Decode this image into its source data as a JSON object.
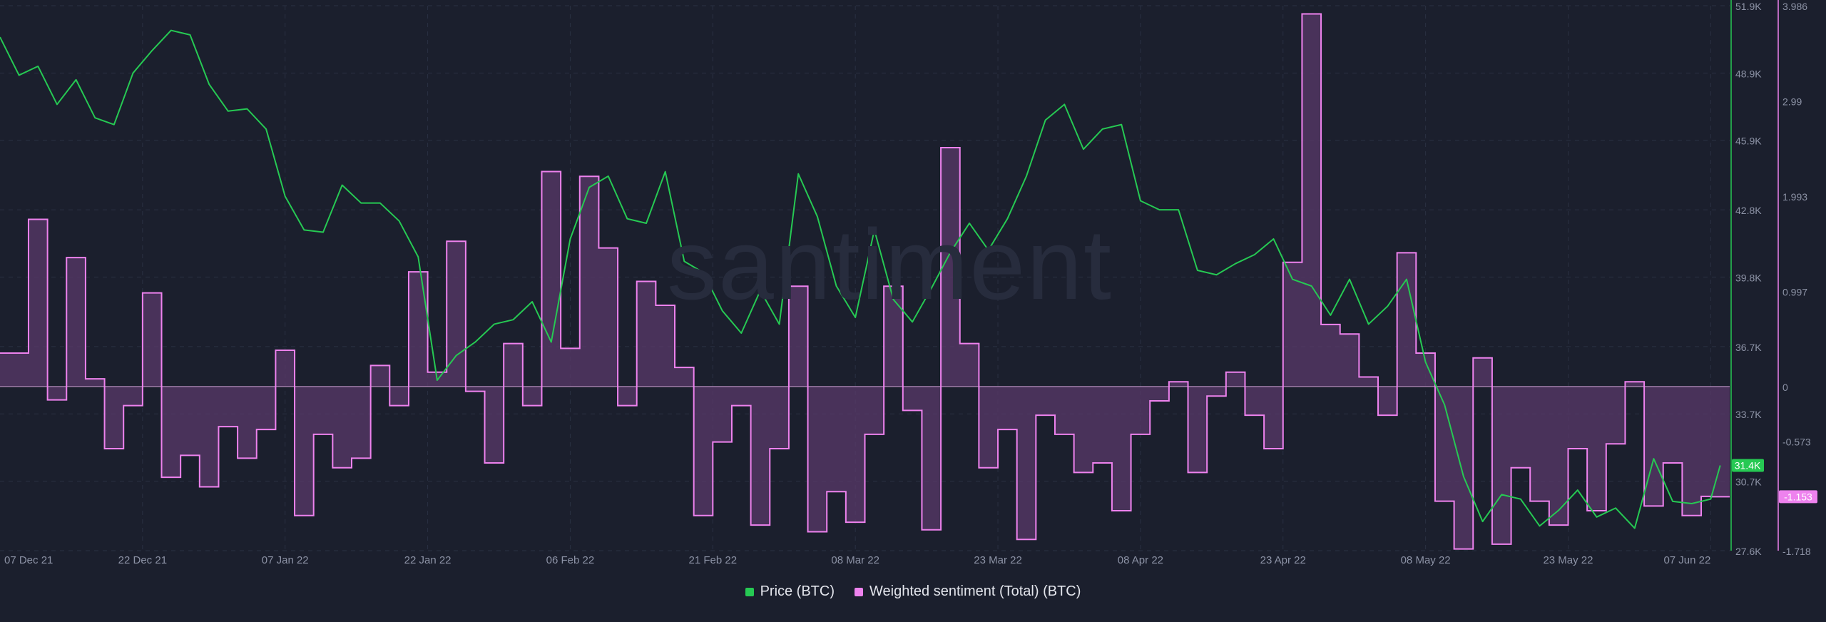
{
  "watermark": "santiment",
  "colors": {
    "background": "#1b1f2d",
    "grid": "#2a3042",
    "price": "#26c953",
    "sentiment": "#ee82ee",
    "sentiment_fill": "#5a3a6a",
    "axis_text": "#8d93a6"
  },
  "chart_data": {
    "type": "line",
    "title": "",
    "x_tick_labels": [
      "07 Dec 21",
      "22 Dec 21",
      "07 Jan 22",
      "22 Jan 22",
      "06 Feb 22",
      "21 Feb 22",
      "08 Mar 22",
      "23 Mar 22",
      "08 Apr 22",
      "23 Apr 22",
      "08 May 22",
      "23 May 22",
      "07 Jun 22"
    ],
    "xlim": [
      "2021-12-07",
      "2022-06-07"
    ],
    "price_axis": {
      "ticks": [
        "51.9K",
        "48.9K",
        "45.9K",
        "42.8K",
        "39.8K",
        "36.7K",
        "33.7K",
        "30.7K",
        "27.6K"
      ],
      "range": [
        27600,
        51900
      ],
      "current_value_label": "31.4K"
    },
    "sentiment_axis": {
      "ticks": [
        "3.986",
        "2.99",
        "1.993",
        "0.997",
        "0",
        "-0.573",
        "-1.718"
      ],
      "range": [
        -1.718,
        3.986
      ],
      "current_value_label": "-1.153"
    },
    "legend_position": "bottom-center",
    "series": [
      {
        "name": "Price (BTC)",
        "axis": "right-outer",
        "style": "line",
        "points": [
          [
            "2021-12-07",
            50500
          ],
          [
            "2021-12-09",
            48800
          ],
          [
            "2021-12-11",
            49200
          ],
          [
            "2021-12-13",
            47500
          ],
          [
            "2021-12-15",
            48600
          ],
          [
            "2021-12-17",
            46900
          ],
          [
            "2021-12-19",
            46600
          ],
          [
            "2021-12-21",
            48900
          ],
          [
            "2021-12-23",
            49900
          ],
          [
            "2021-12-25",
            50800
          ],
          [
            "2021-12-27",
            50600
          ],
          [
            "2021-12-29",
            48400
          ],
          [
            "2021-12-31",
            47200
          ],
          [
            "2022-01-02",
            47300
          ],
          [
            "2022-01-04",
            46400
          ],
          [
            "2022-01-06",
            43400
          ],
          [
            "2022-01-08",
            41900
          ],
          [
            "2022-01-10",
            41800
          ],
          [
            "2022-01-12",
            43900
          ],
          [
            "2022-01-14",
            43100
          ],
          [
            "2022-01-16",
            43100
          ],
          [
            "2022-01-18",
            42300
          ],
          [
            "2022-01-20",
            40700
          ],
          [
            "2022-01-22",
            35200
          ],
          [
            "2022-01-24",
            36300
          ],
          [
            "2022-01-26",
            36900
          ],
          [
            "2022-01-28",
            37700
          ],
          [
            "2022-01-30",
            37900
          ],
          [
            "2022-02-01",
            38700
          ],
          [
            "2022-02-03",
            36900
          ],
          [
            "2022-02-05",
            41500
          ],
          [
            "2022-02-07",
            43800
          ],
          [
            "2022-02-09",
            44300
          ],
          [
            "2022-02-11",
            42400
          ],
          [
            "2022-02-13",
            42200
          ],
          [
            "2022-02-15",
            44500
          ],
          [
            "2022-02-17",
            40500
          ],
          [
            "2022-02-19",
            40000
          ],
          [
            "2022-02-21",
            38300
          ],
          [
            "2022-02-23",
            37300
          ],
          [
            "2022-02-25",
            39200
          ],
          [
            "2022-02-27",
            37700
          ],
          [
            "2022-03-01",
            44400
          ],
          [
            "2022-03-03",
            42500
          ],
          [
            "2022-03-05",
            39400
          ],
          [
            "2022-03-07",
            38000
          ],
          [
            "2022-03-09",
            41900
          ],
          [
            "2022-03-11",
            38800
          ],
          [
            "2022-03-13",
            37800
          ],
          [
            "2022-03-15",
            39300
          ],
          [
            "2022-03-17",
            40900
          ],
          [
            "2022-03-19",
            42200
          ],
          [
            "2022-03-21",
            41000
          ],
          [
            "2022-03-23",
            42400
          ],
          [
            "2022-03-25",
            44300
          ],
          [
            "2022-03-27",
            46800
          ],
          [
            "2022-03-29",
            47500
          ],
          [
            "2022-03-31",
            45500
          ],
          [
            "2022-04-02",
            46400
          ],
          [
            "2022-04-04",
            46600
          ],
          [
            "2022-04-06",
            43200
          ],
          [
            "2022-04-08",
            42800
          ],
          [
            "2022-04-10",
            42800
          ],
          [
            "2022-04-12",
            40100
          ],
          [
            "2022-04-14",
            39900
          ],
          [
            "2022-04-16",
            40400
          ],
          [
            "2022-04-18",
            40800
          ],
          [
            "2022-04-20",
            41500
          ],
          [
            "2022-04-22",
            39700
          ],
          [
            "2022-04-24",
            39400
          ],
          [
            "2022-04-26",
            38100
          ],
          [
            "2022-04-28",
            39700
          ],
          [
            "2022-04-30",
            37700
          ],
          [
            "2022-05-02",
            38500
          ],
          [
            "2022-05-04",
            39700
          ],
          [
            "2022-05-06",
            36000
          ],
          [
            "2022-05-08",
            34100
          ],
          [
            "2022-05-10",
            30900
          ],
          [
            "2022-05-12",
            28900
          ],
          [
            "2022-05-14",
            30100
          ],
          [
            "2022-05-16",
            29900
          ],
          [
            "2022-05-18",
            28700
          ],
          [
            "2022-05-20",
            29400
          ],
          [
            "2022-05-22",
            30300
          ],
          [
            "2022-05-24",
            29100
          ],
          [
            "2022-05-26",
            29500
          ],
          [
            "2022-05-28",
            28600
          ],
          [
            "2022-05-30",
            31700
          ],
          [
            "2022-06-01",
            29800
          ],
          [
            "2022-06-03",
            29700
          ],
          [
            "2022-06-05",
            29900
          ],
          [
            "2022-06-06",
            31400
          ]
        ]
      },
      {
        "name": "Weighted sentiment (Total) (BTC)",
        "axis": "right-inner",
        "style": "step-area",
        "points": [
          [
            "2021-12-07",
            0.35
          ],
          [
            "2021-12-10",
            1.75
          ],
          [
            "2021-12-12",
            -0.14
          ],
          [
            "2021-12-14",
            1.35
          ],
          [
            "2021-12-16",
            0.08
          ],
          [
            "2021-12-18",
            -0.65
          ],
          [
            "2021-12-20",
            -0.2
          ],
          [
            "2021-12-22",
            0.98
          ],
          [
            "2021-12-24",
            -0.95
          ],
          [
            "2021-12-26",
            -0.72
          ],
          [
            "2021-12-28",
            -1.05
          ],
          [
            "2021-12-30",
            -0.42
          ],
          [
            "2022-01-01",
            -0.75
          ],
          [
            "2022-01-03",
            -0.45
          ],
          [
            "2022-01-05",
            0.38
          ],
          [
            "2022-01-07",
            -1.35
          ],
          [
            "2022-01-09",
            -0.5
          ],
          [
            "2022-01-11",
            -0.85
          ],
          [
            "2022-01-13",
            -0.75
          ],
          [
            "2022-01-15",
            0.22
          ],
          [
            "2022-01-17",
            -0.2
          ],
          [
            "2022-01-19",
            1.2
          ],
          [
            "2022-01-21",
            0.15
          ],
          [
            "2022-01-23",
            1.52
          ],
          [
            "2022-01-25",
            -0.05
          ],
          [
            "2022-01-27",
            -0.8
          ],
          [
            "2022-01-29",
            0.45
          ],
          [
            "2022-01-31",
            -0.2
          ],
          [
            "2022-02-02",
            2.25
          ],
          [
            "2022-02-04",
            0.4
          ],
          [
            "2022-02-06",
            2.2
          ],
          [
            "2022-02-08",
            1.45
          ],
          [
            "2022-02-10",
            -0.2
          ],
          [
            "2022-02-12",
            1.1
          ],
          [
            "2022-02-14",
            0.85
          ],
          [
            "2022-02-16",
            0.2
          ],
          [
            "2022-02-18",
            -1.35
          ],
          [
            "2022-02-20",
            -0.58
          ],
          [
            "2022-02-22",
            -0.2
          ],
          [
            "2022-02-24",
            -1.45
          ],
          [
            "2022-02-26",
            -0.65
          ],
          [
            "2022-02-28",
            1.05
          ],
          [
            "2022-03-02",
            -1.52
          ],
          [
            "2022-03-04",
            -1.1
          ],
          [
            "2022-03-06",
            -1.42
          ],
          [
            "2022-03-08",
            -0.5
          ],
          [
            "2022-03-10",
            1.05
          ],
          [
            "2022-03-12",
            -0.25
          ],
          [
            "2022-03-14",
            -1.5
          ],
          [
            "2022-03-16",
            2.5
          ],
          [
            "2022-03-18",
            0.45
          ],
          [
            "2022-03-20",
            -0.85
          ],
          [
            "2022-03-22",
            -0.45
          ],
          [
            "2022-03-24",
            -1.6
          ],
          [
            "2022-03-26",
            -0.3
          ],
          [
            "2022-03-28",
            -0.5
          ],
          [
            "2022-03-30",
            -0.9
          ],
          [
            "2022-04-01",
            -0.8
          ],
          [
            "2022-04-03",
            -1.3
          ],
          [
            "2022-04-05",
            -0.5
          ],
          [
            "2022-04-07",
            -0.15
          ],
          [
            "2022-04-09",
            0.05
          ],
          [
            "2022-04-11",
            -0.9
          ],
          [
            "2022-04-13",
            -0.1
          ],
          [
            "2022-04-15",
            0.15
          ],
          [
            "2022-04-17",
            -0.3
          ],
          [
            "2022-04-19",
            -0.65
          ],
          [
            "2022-04-21",
            1.3
          ],
          [
            "2022-04-23",
            3.9
          ],
          [
            "2022-04-25",
            0.65
          ],
          [
            "2022-04-27",
            0.55
          ],
          [
            "2022-04-29",
            0.1
          ],
          [
            "2022-05-01",
            -0.3
          ],
          [
            "2022-05-03",
            1.4
          ],
          [
            "2022-05-05",
            0.35
          ],
          [
            "2022-05-07",
            -1.2
          ],
          [
            "2022-05-09",
            -1.7
          ],
          [
            "2022-05-11",
            0.3
          ],
          [
            "2022-05-13",
            -1.65
          ],
          [
            "2022-05-15",
            -0.85
          ],
          [
            "2022-05-17",
            -1.2
          ],
          [
            "2022-05-19",
            -1.45
          ],
          [
            "2022-05-21",
            -0.65
          ],
          [
            "2022-05-23",
            -1.3
          ],
          [
            "2022-05-25",
            -0.6
          ],
          [
            "2022-05-27",
            0.05
          ],
          [
            "2022-05-29",
            -1.25
          ],
          [
            "2022-05-31",
            -0.8
          ],
          [
            "2022-06-02",
            -1.35
          ],
          [
            "2022-06-04",
            -1.15
          ],
          [
            "2022-06-05",
            -1.153
          ]
        ]
      }
    ]
  }
}
